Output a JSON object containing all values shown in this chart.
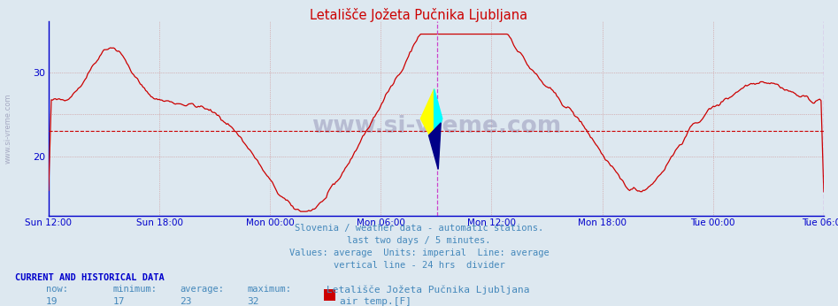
{
  "title": "Letališče Jožeta Pučnika Ljubljana",
  "title_color": "#cc0000",
  "bg_color": "#dde8f0",
  "line_color": "#cc0000",
  "axis_color": "#0000cc",
  "avg_value": 23,
  "y_min": 13,
  "y_max": 36,
  "y_ticks": [
    20,
    30
  ],
  "x_tick_labels": [
    "Sun 12:00",
    "Sun 18:00",
    "Mon 00:00",
    "Mon 06:00",
    "Mon 12:00",
    "Mon 18:00",
    "Tue 00:00",
    "Tue 06:00"
  ],
  "vertical_line_color": "#cc44cc",
  "right_line_color": "#cc44cc",
  "watermark": "www.si-vreme.com",
  "watermark_color": "#9999bb",
  "subtitle_lines": [
    "Slovenia / weather data - automatic stations.",
    "last two days / 5 minutes.",
    "Values: average  Units: imperial  Line: average",
    "vertical line - 24 hrs  divider"
  ],
  "subtitle_color": "#4488bb",
  "footer_label": "CURRENT AND HISTORICAL DATA",
  "footer_label_color": "#0000cc",
  "footer_headers": [
    "now:",
    "minimum:",
    "average:",
    "maximum:"
  ],
  "footer_values": [
    "19",
    "17",
    "23",
    "32"
  ],
  "footer_station": "Letališče Jožeta Pučnika Ljubljana",
  "footer_series": "air temp.[F]",
  "footer_color": "#4488bb",
  "side_text": "www.si-vreme.com",
  "side_text_color": "#8888aa",
  "grid_color": "#cc8888"
}
